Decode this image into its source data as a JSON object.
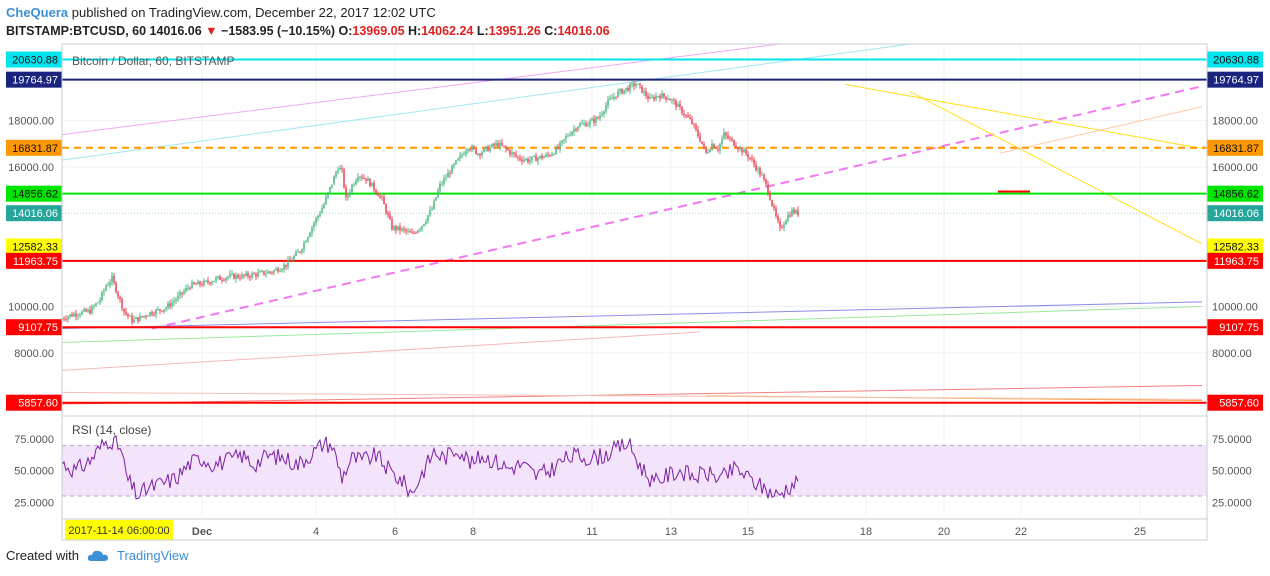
{
  "header": {
    "author": "CheQuera",
    "published_text": " published on TradingView.com, December 22, 2017 12:02 UTC",
    "symbol": "BITSTAMP:BTCUSD, 60",
    "last": "14016.06",
    "change": "−1583.95 (−10.15%)",
    "o_label": "O:",
    "o_val": "13969.05",
    "h_label": "H:",
    "h_val": "14062.24",
    "l_label": "L:",
    "l_val": "13951.26",
    "c_label": "C:",
    "c_val": "14016.06"
  },
  "footer": {
    "created_with": "Created with",
    "brand": "TradingView"
  },
  "chart_data": [
    {
      "type": "candlestick",
      "title": "Bitcoin / Dollar, 60, BITSTAMP",
      "ylim": [
        5500,
        21300
      ],
      "y_ticks": [
        8000,
        10000,
        16000,
        18000
      ],
      "y_tick_labels": [
        "8000.00",
        "10000.00",
        "16000.00",
        "18000.00"
      ],
      "x_ticks": [
        "Dec",
        "4",
        "6",
        "8",
        "11",
        "13",
        "15",
        "18",
        "20",
        "22",
        "25"
      ],
      "crosshair_date": "2017-11-14 06:00:00",
      "current_price": {
        "value": 14016.06,
        "label": "14016.06",
        "color": "#26a69a"
      },
      "horizontal_levels": [
        {
          "value": 20630.88,
          "label": "20630.88",
          "color": "#00e5ee",
          "style": "solid"
        },
        {
          "value": 19764.97,
          "label": "19764.97",
          "color": "#1a237e",
          "style": "solid"
        },
        {
          "value": 16831.87,
          "label": "16831.87",
          "color": "#ff9800",
          "style": "dashed"
        },
        {
          "value": 14856.62,
          "label": "14856.62",
          "color": "#00e600",
          "style": "solid"
        },
        {
          "value": 12582.33,
          "label": "12582.33",
          "color": "#ffff00",
          "style": "none"
        },
        {
          "value": 11963.75,
          "label": "11963.75",
          "color": "#ff0000",
          "style": "solid"
        },
        {
          "value": 9107.75,
          "label": "9107.75",
          "color": "#ff0000",
          "style": "solid"
        },
        {
          "value": 5857.6,
          "label": "5857.60",
          "color": "#ff0000",
          "style": "solid"
        }
      ],
      "price_path": [
        [
          0,
          9500
        ],
        [
          14,
          9700
        ],
        [
          28,
          9800
        ],
        [
          38,
          10300
        ],
        [
          44,
          10900
        ],
        [
          50,
          11200
        ],
        [
          56,
          10500
        ],
        [
          62,
          9800
        ],
        [
          70,
          9400
        ],
        [
          78,
          9500
        ],
        [
          86,
          9700
        ],
        [
          94,
          9800
        ],
        [
          104,
          9950
        ],
        [
          116,
          10400
        ],
        [
          128,
          10900
        ],
        [
          142,
          11000
        ],
        [
          156,
          11200
        ],
        [
          168,
          11300
        ],
        [
          182,
          11300
        ],
        [
          196,
          11400
        ],
        [
          210,
          11500
        ],
        [
          224,
          11800
        ],
        [
          238,
          12400
        ],
        [
          252,
          13600
        ],
        [
          262,
          14400
        ],
        [
          270,
          15300
        ],
        [
          276,
          16000
        ],
        [
          280,
          15800
        ],
        [
          284,
          14600
        ],
        [
          290,
          15200
        ],
        [
          296,
          15700
        ],
        [
          304,
          15500
        ],
        [
          312,
          15100
        ],
        [
          320,
          14600
        ],
        [
          330,
          13400
        ],
        [
          340,
          13300
        ],
        [
          350,
          13100
        ],
        [
          360,
          13500
        ],
        [
          370,
          14200
        ],
        [
          378,
          15200
        ],
        [
          386,
          15700
        ],
        [
          396,
          16300
        ],
        [
          406,
          16900
        ],
        [
          416,
          16600
        ],
        [
          426,
          16800
        ],
        [
          436,
          17000
        ],
        [
          446,
          16700
        ],
        [
          456,
          16400
        ],
        [
          466,
          16300
        ],
        [
          476,
          16400
        ],
        [
          486,
          16500
        ],
        [
          496,
          16800
        ],
        [
          506,
          17400
        ],
        [
          516,
          17800
        ],
        [
          526,
          17900
        ],
        [
          536,
          18100
        ],
        [
          546,
          18800
        ],
        [
          556,
          19200
        ],
        [
          566,
          19400
        ],
        [
          574,
          19600
        ],
        [
          580,
          19300
        ],
        [
          588,
          18900
        ],
        [
          596,
          19100
        ],
        [
          606,
          19000
        ],
        [
          614,
          18700
        ],
        [
          622,
          18300
        ],
        [
          630,
          17900
        ],
        [
          638,
          17200
        ],
        [
          644,
          16600
        ],
        [
          650,
          17000
        ],
        [
          656,
          16800
        ],
        [
          662,
          17400
        ],
        [
          670,
          17100
        ],
        [
          678,
          16800
        ],
        [
          686,
          16500
        ],
        [
          694,
          16000
        ],
        [
          700,
          15600
        ],
        [
          706,
          15000
        ],
        [
          712,
          14100
        ],
        [
          718,
          13300
        ],
        [
          724,
          13800
        ],
        [
          730,
          14100
        ],
        [
          736,
          14016
        ]
      ],
      "trendlines": [
        {
          "name": "magenta-dashed-trend",
          "from": [
            152,
            9050
          ],
          "to": [
            1202,
            19480
          ],
          "color": "#f277f2",
          "style": "dashed"
        },
        {
          "name": "yellow-trend-upper",
          "from": [
            845,
            19560
          ],
          "to": [
            1202,
            16800
          ],
          "color": "#ffe01a",
          "style": "solid"
        },
        {
          "name": "yellow-trend-lower",
          "from": [
            910,
            19250
          ],
          "to": [
            1202,
            12700
          ],
          "color": "#ffe01a",
          "style": "solid"
        },
        {
          "name": "pink-channel-upper",
          "from": [
            62,
            17400
          ],
          "to": [
            780,
            21300
          ],
          "color": "#f4a6f4",
          "style": "solid"
        },
        {
          "name": "cyan-channel",
          "from": [
            62,
            16300
          ],
          "to": [
            910,
            21300
          ],
          "color": "#9fe7f4",
          "style": "solid"
        },
        {
          "name": "orange-ray",
          "from": [
            1000,
            16600
          ],
          "to": [
            1202,
            18600
          ],
          "color": "#ffc9a6",
          "style": "solid"
        },
        {
          "name": "blue-ma",
          "from": [
            62,
            9050
          ],
          "to": [
            1202,
            10200
          ],
          "color": "#8d8de8",
          "style": "solid"
        },
        {
          "name": "green-ma",
          "from": [
            62,
            8450
          ],
          "to": [
            1202,
            10000
          ],
          "color": "#9be89b",
          "style": "solid"
        },
        {
          "name": "pink-ma",
          "from": [
            62,
            7250
          ],
          "to": [
            700,
            8900
          ],
          "color": "#f6b8b8",
          "style": "solid"
        },
        {
          "name": "red-ma",
          "from": [
            62,
            5800
          ],
          "to": [
            1202,
            6600
          ],
          "color": "#f08080",
          "style": "solid"
        },
        {
          "name": "orange-ma",
          "from": [
            706,
            6150
          ],
          "to": [
            1202,
            5950
          ],
          "color": "#f6a640",
          "style": "solid"
        },
        {
          "name": "salmon-ma",
          "from": [
            62,
            6300
          ],
          "to": [
            1202,
            6000
          ],
          "color": "#f6c0b0",
          "style": "solid"
        }
      ]
    },
    {
      "type": "line",
      "title": "RSI (14, close)",
      "ylim": [
        15,
        90
      ],
      "y_ticks": [
        25,
        50,
        75
      ],
      "y_tick_labels": [
        "25.0000",
        "50.0000",
        "75.0000"
      ],
      "band": [
        30,
        70
      ],
      "series": [
        {
          "color": "#7b1fa2",
          "points": [
            [
              0,
              56
            ],
            [
              14,
              50
            ],
            [
              28,
              58
            ],
            [
              40,
              70
            ],
            [
              48,
              75
            ],
            [
              58,
              68
            ],
            [
              66,
              42
            ],
            [
              76,
              30
            ],
            [
              86,
              36
            ],
            [
              100,
              40
            ],
            [
              114,
              44
            ],
            [
              128,
              56
            ],
            [
              140,
              60
            ],
            [
              152,
              55
            ],
            [
              166,
              58
            ],
            [
              180,
              62
            ],
            [
              192,
              55
            ],
            [
              206,
              62
            ],
            [
              222,
              60
            ],
            [
              236,
              55
            ],
            [
              252,
              65
            ],
            [
              262,
              72
            ],
            [
              270,
              70
            ],
            [
              280,
              45
            ],
            [
              290,
              60
            ],
            [
              300,
              58
            ],
            [
              314,
              62
            ],
            [
              330,
              48
            ],
            [
              340,
              42
            ],
            [
              350,
              32
            ],
            [
              360,
              48
            ],
            [
              372,
              65
            ],
            [
              382,
              60
            ],
            [
              396,
              68
            ],
            [
              410,
              55
            ],
            [
              420,
              62
            ],
            [
              432,
              58
            ],
            [
              446,
              52
            ],
            [
              460,
              55
            ],
            [
              474,
              46
            ],
            [
              488,
              50
            ],
            [
              500,
              58
            ],
            [
              514,
              62
            ],
            [
              528,
              60
            ],
            [
              542,
              62
            ],
            [
              554,
              67
            ],
            [
              566,
              72
            ],
            [
              578,
              54
            ],
            [
              592,
              40
            ],
            [
              604,
              46
            ],
            [
              618,
              50
            ],
            [
              632,
              45
            ],
            [
              644,
              48
            ],
            [
              660,
              44
            ],
            [
              674,
              52
            ],
            [
              690,
              42
            ],
            [
              704,
              35
            ],
            [
              716,
              30
            ],
            [
              724,
              36
            ],
            [
              732,
              40
            ],
            [
              736,
              42
            ]
          ]
        }
      ]
    }
  ]
}
